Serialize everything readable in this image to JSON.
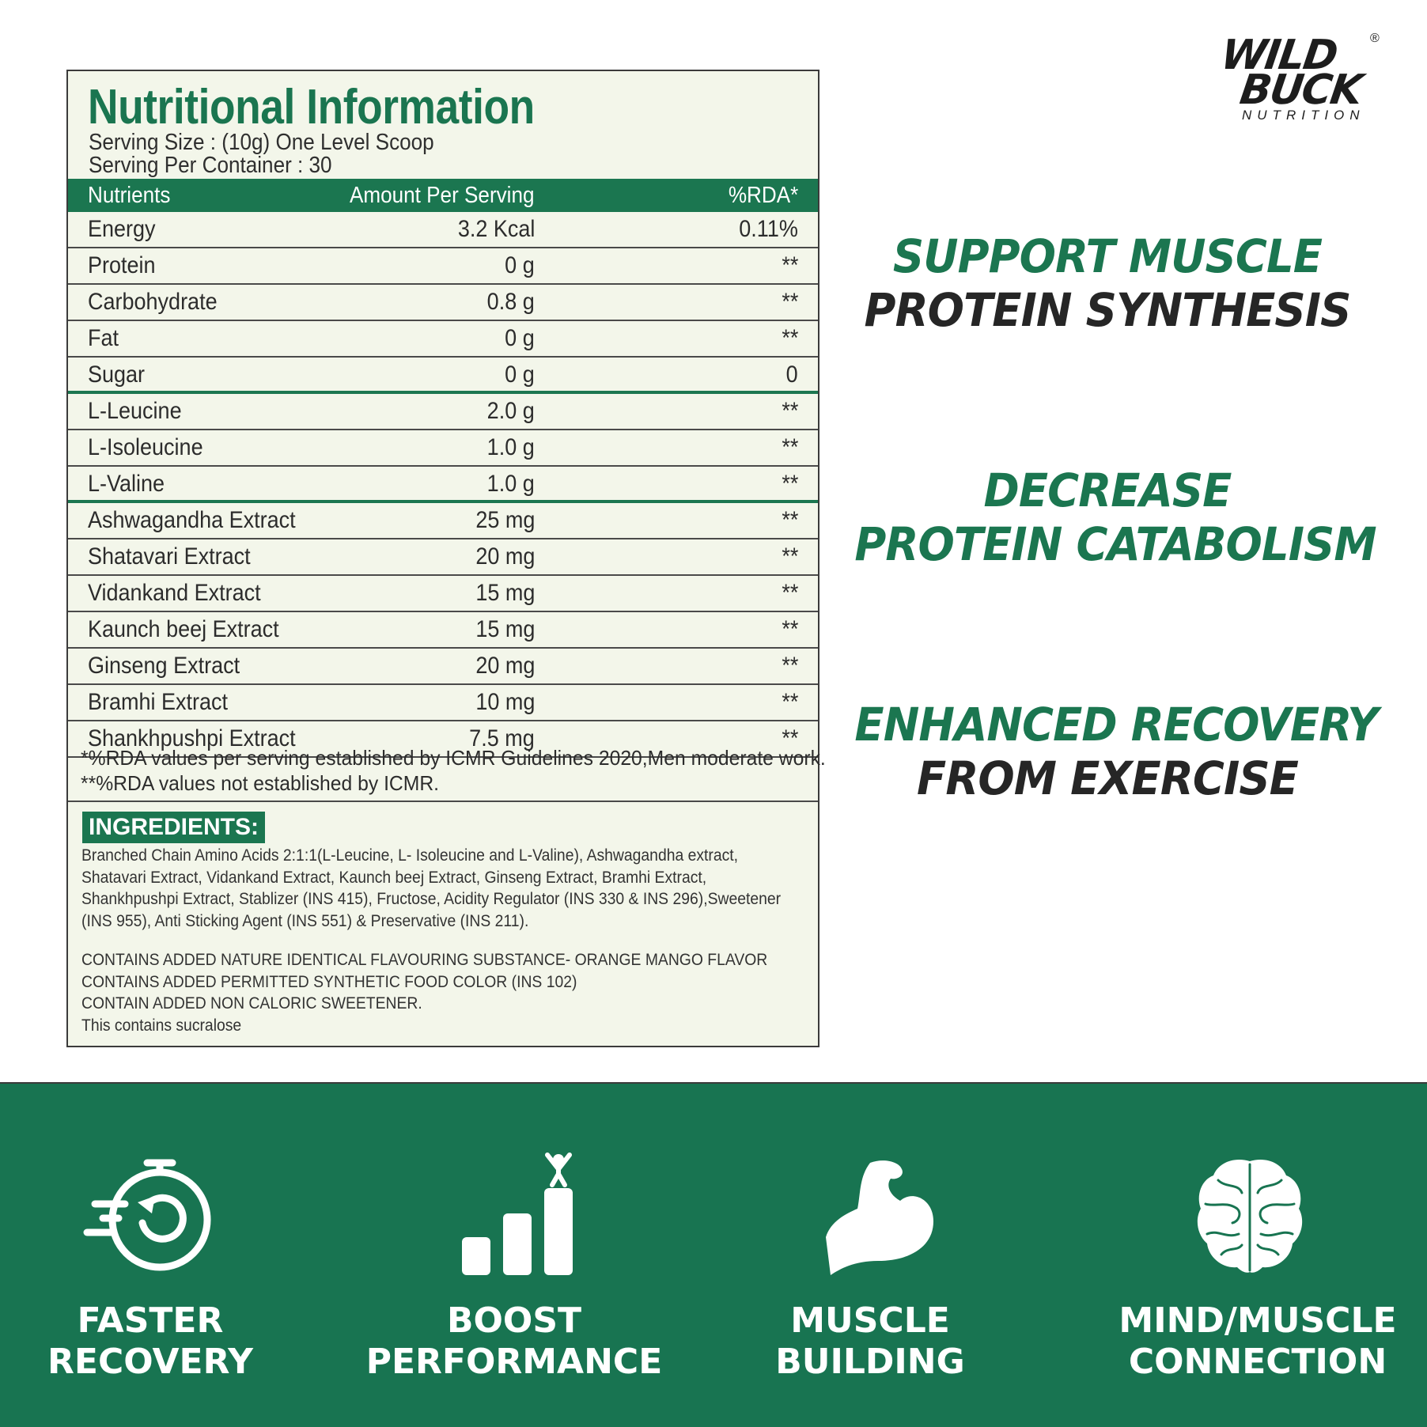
{
  "brand": {
    "line1": "WILD",
    "line2": "BUCK",
    "sub": "NUTRITION",
    "reg": "®",
    "color_dark": "#1d1d1d"
  },
  "nutrition_panel": {
    "title": "Nutritional Information",
    "serving_size": "Serving Size : (10g) One Level Scoop",
    "serving_per_container": "Serving Per Container : 30",
    "columns": [
      "Nutrients",
      "Amount Per Serving",
      "%RDA*"
    ],
    "rows": [
      {
        "nutrient": "Energy",
        "amount": "3.2 Kcal",
        "rda": "0.11%"
      },
      {
        "nutrient": "Protein",
        "amount": "0 g",
        "rda": "**"
      },
      {
        "nutrient": "Carbohydrate",
        "amount": "0.8 g",
        "rda": "**"
      },
      {
        "nutrient": "Fat",
        "amount": "0 g",
        "rda": "**"
      },
      {
        "nutrient": "Sugar",
        "amount": "0 g",
        "rda": "0"
      },
      {
        "nutrient": "L-Leucine",
        "amount": "2.0 g",
        "rda": "**"
      },
      {
        "nutrient": "L-Isoleucine",
        "amount": "1.0 g",
        "rda": "**"
      },
      {
        "nutrient": "L-Valine",
        "amount": "1.0 g",
        "rda": "**"
      },
      {
        "nutrient": "Ashwagandha Extract",
        "amount": "25 mg",
        "rda": "**"
      },
      {
        "nutrient": "Shatavari Extract",
        "amount": "20 mg",
        "rda": "**"
      },
      {
        "nutrient": "Vidankand Extract",
        "amount": "15 mg",
        "rda": "**"
      },
      {
        "nutrient": "Kaunch beej Extract",
        "amount": "15 mg",
        "rda": "**"
      },
      {
        "nutrient": "Ginseng Extract",
        "amount": "20 mg",
        "rda": "**"
      },
      {
        "nutrient": "Bramhi Extract",
        "amount": "10 mg",
        "rda": "**"
      },
      {
        "nutrient": "Shankhpushpi Extract",
        "amount": "7.5 mg",
        "rda": "**"
      }
    ],
    "rda_note_1": "*%RDA  values per serving established by ICMR Guidelines 2020,Men moderate work.",
    "rda_note_2": "**%RDA values not established by ICMR.",
    "ingredients_label": "INGREDIENTS:",
    "ingredients_text": "Branched Chain Amino Acids 2:1:1(L-Leucine, L- Isoleucine and L-Valine), Ashwagandha extract, Shatavari Extract, Vidankand Extract, Kaunch beej Extract, Ginseng Extract,  Bramhi Extract, Shankhpushpi Extract, Stablizer (INS 415), Fructose, Acidity Regulator (INS 330 & INS 296),Sweetener (INS 955), Anti Sticking Agent (INS 551) & Preservative (INS 211).",
    "contains": [
      "CONTAINS  ADDED NATURE IDENTICAL FLAVOURING SUBSTANCE-  ORANGE MANGO FLAVOR",
      "CONTAINS  ADDED PERMITTED SYNTHETIC FOOD COLOR (INS 102)",
      "CONTAIN  ADDED NON CALORIC SWEETENER.",
      "This contains sucralose"
    ]
  },
  "claims": [
    {
      "line1": "SUPPORT MUSCLE",
      "line2": "PROTEIN SYNTHESIS"
    },
    {
      "line1": "DECREASE",
      "line2": "PROTEIN CATABOLISM"
    },
    {
      "line1": "ENHANCED RECOVERY",
      "line2": "FROM EXERCISE"
    }
  ],
  "features": [
    {
      "line1": "FASTER",
      "line2": "RECOVERY",
      "icon": "stopwatch-icon"
    },
    {
      "line1": "BOOST",
      "line2": "PERFORMANCE",
      "icon": "growth-bars-icon"
    },
    {
      "line1": "MUSCLE",
      "line2": "BUILDING",
      "icon": "flexed-arm-icon"
    },
    {
      "line1": "MIND/MUSCLE",
      "line2": "CONNECTION",
      "icon": "brain-icon"
    }
  ],
  "colors": {
    "brand_green": "#1b7650",
    "panel_bg": "#f3f6ea",
    "band_green": "#187451",
    "text_dark": "#262626"
  }
}
